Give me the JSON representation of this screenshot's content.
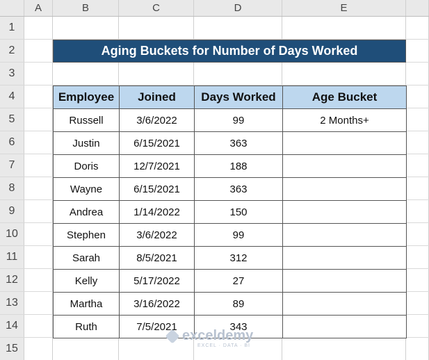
{
  "sheet": {
    "column_headers": [
      "A",
      "B",
      "C",
      "D",
      "E"
    ],
    "row_headers": [
      1,
      2,
      3,
      4,
      5,
      6,
      7,
      8,
      9,
      10,
      11,
      12,
      13,
      14,
      15
    ]
  },
  "title": "Aging Buckets for Number of Days Worked",
  "table": {
    "columns": [
      "Employee",
      "Joined",
      "Days Worked",
      "Age Bucket"
    ],
    "rows": [
      [
        "Russell",
        "3/6/2022",
        99,
        "2 Months+"
      ],
      [
        "Justin",
        "6/15/2021",
        363
      ],
      [
        "Doris",
        "12/7/2021",
        188
      ],
      [
        "Wayne",
        "6/15/2021",
        363
      ],
      [
        "Andrea",
        "1/14/2022",
        150
      ],
      [
        "Stephen",
        "3/6/2022",
        99
      ],
      [
        "Sarah",
        "8/5/2021",
        312
      ],
      [
        "Kelly",
        "5/17/2022",
        27
      ],
      [
        "Martha",
        "3/16/2022",
        89
      ],
      [
        "Ruth",
        "7/5/2021",
        343
      ]
    ]
  },
  "watermark": {
    "name": "exceldemy",
    "tagline": "EXCEL · DATA · BI"
  }
}
